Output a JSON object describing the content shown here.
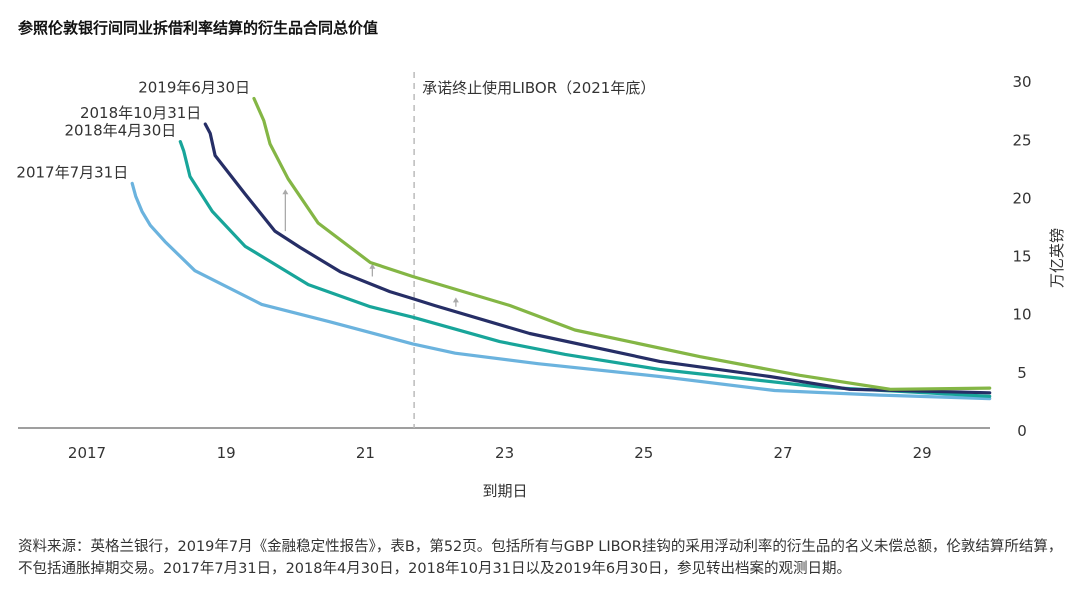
{
  "chart_data": {
    "type": "line",
    "title": "参照伦敦银行间同业拆借利率结算的衍生品合同总价值",
    "xlabel": "到期日",
    "ylabel": "万亿英镑",
    "xlim": [
      2016.4,
      2030.0
    ],
    "ylim": [
      0,
      30
    ],
    "x_ticks": [
      2017,
      2019,
      2021,
      2023,
      2025,
      2027,
      2029
    ],
    "x_tick_labels": [
      "2017",
      "19",
      "21",
      "23",
      "25",
      "27",
      "29"
    ],
    "y_ticks": [
      0,
      5,
      10,
      15,
      20,
      25,
      30
    ],
    "y_tick_labels": [
      "0",
      "5",
      "10",
      "15",
      "20",
      "25",
      "30"
    ],
    "y_axis_side": "right",
    "grid": false,
    "annotation": {
      "label": "承诺终止使用LIBOR（2021年底）",
      "x": 2021.7,
      "style": "dashed-vertical-line",
      "color": "#bbbbbb"
    },
    "arrows": [
      {
        "x": 2019.85,
        "from": 17.1,
        "to": 20.7
      },
      {
        "x": 2021.1,
        "from": 13.2,
        "to": 14.3
      },
      {
        "x": 2022.3,
        "from": 10.6,
        "to": 11.4
      }
    ],
    "series": [
      {
        "name": "2017年7月31日",
        "color": "#6bb3de",
        "x": [
          2017.65,
          2017.7,
          2017.79,
          2017.91,
          2018.12,
          2018.55,
          2019.51,
          2020.49,
          2021.68,
          2022.29,
          2023.48,
          2025.23,
          2026.88,
          2028.39,
          2029.97
        ],
        "y": [
          21.2,
          20.1,
          18.8,
          17.6,
          16.2,
          13.7,
          10.8,
          9.3,
          7.4,
          6.6,
          5.7,
          4.6,
          3.4,
          3.0,
          2.7
        ]
      },
      {
        "name": "2018年4月30日",
        "color": "#18a59a",
        "x": [
          2018.34,
          2018.39,
          2018.48,
          2018.8,
          2019.27,
          2020.18,
          2021.07,
          2021.68,
          2022.93,
          2023.87,
          2025.23,
          2027.53,
          2029.97
        ],
        "y": [
          24.8,
          24.0,
          21.8,
          18.8,
          15.8,
          12.5,
          10.6,
          9.7,
          7.6,
          6.5,
          5.2,
          3.7,
          2.9
        ]
      },
      {
        "name": "2018年10月31日",
        "color": "#262e66",
        "x": [
          2018.7,
          2018.77,
          2018.84,
          2019.27,
          2019.7,
          2020.06,
          2020.64,
          2021.35,
          2021.68,
          2022.0,
          2023.36,
          2025.23,
          2026.81,
          2027.96,
          2029.97
        ],
        "y": [
          26.3,
          25.5,
          23.6,
          20.3,
          17.1,
          15.7,
          13.6,
          11.9,
          11.3,
          10.7,
          8.3,
          5.9,
          4.6,
          3.5,
          3.2
        ]
      },
      {
        "name": "2019年6月30日",
        "color": "#84b645",
        "x": [
          2019.4,
          2019.54,
          2019.63,
          2019.89,
          2020.32,
          2021.07,
          2021.68,
          2023.08,
          2024.01,
          2025.81,
          2027.24,
          2028.54,
          2029.97
        ],
        "y": [
          28.5,
          26.6,
          24.6,
          21.6,
          17.8,
          14.4,
          13.2,
          10.7,
          8.6,
          6.3,
          4.7,
          3.5,
          3.6
        ]
      }
    ]
  },
  "footnote": "资料来源：英格兰银行，2019年7月《金融稳定性报告》，表B，第52页。包括所有与GBP LIBOR挂钩的采用浮动利率的衍生品的名义未偿总额，伦敦结算所结算，不包括通胀掉期交易。2017年7月31日，2018年4月30日，2018年10月31日以及2019年6月30日，参见转出档案的观测日期。"
}
